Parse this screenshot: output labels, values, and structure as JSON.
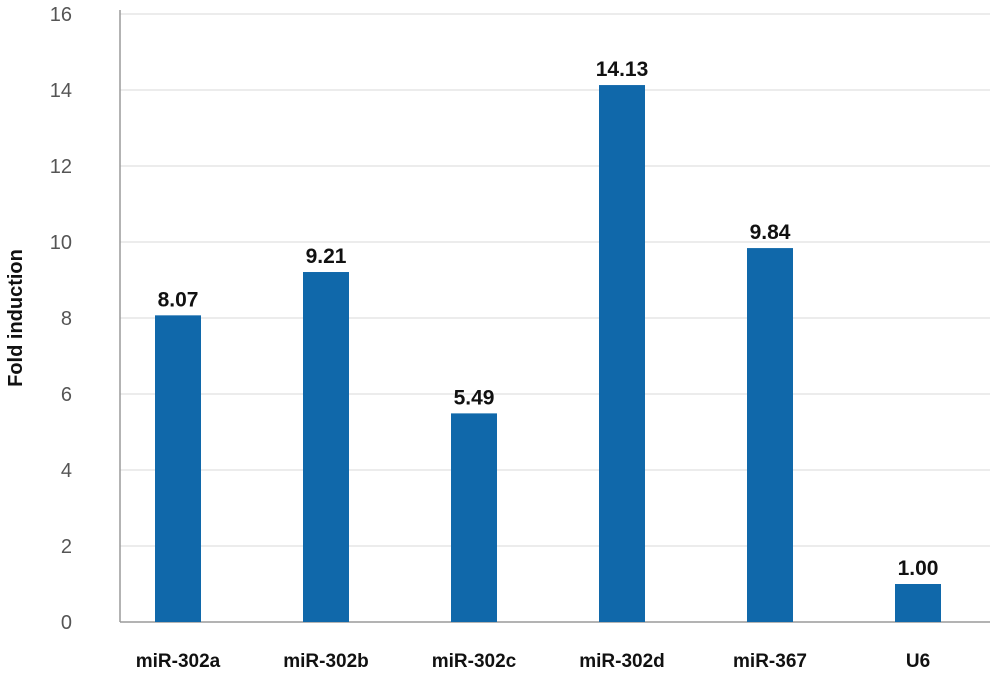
{
  "chart_data": {
    "type": "bar",
    "title": "",
    "xlabel": "",
    "ylabel": "Fold induction",
    "categories": [
      "miR-302a",
      "miR-302b",
      "miR-302c",
      "miR-302d",
      "miR-367",
      "U6"
    ],
    "values": [
      8.07,
      9.21,
      5.49,
      14.13,
      9.84,
      1.0
    ],
    "value_labels": [
      "8.07",
      "9.21",
      "5.49",
      "14.13",
      "9.84",
      "1.00"
    ],
    "ylim": [
      0,
      16
    ],
    "yticks": [
      0,
      2,
      4,
      6,
      8,
      10,
      12,
      14,
      16
    ],
    "grid": true,
    "bar_color": "#1068aa",
    "legend": "none"
  }
}
